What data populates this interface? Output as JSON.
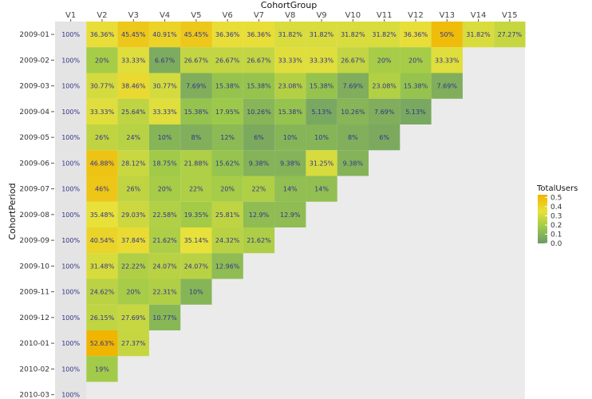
{
  "chart_data": {
    "type": "heatmap",
    "xlabel": "CohortGroup",
    "ylabel": "CohortPeriod",
    "x_categories": [
      "V1",
      "V2",
      "V3",
      "V4",
      "V5",
      "V6",
      "V7",
      "V8",
      "V9",
      "V10",
      "V11",
      "V12",
      "V13",
      "V14",
      "V15"
    ],
    "y_categories": [
      "2009-01",
      "2009-02",
      "2009-03",
      "2009-04",
      "2009-05",
      "2009-06",
      "2009-07",
      "2009-08",
      "2009-09",
      "2009-10",
      "2009-11",
      "2009-12",
      "2010-01",
      "2010-02",
      "2010-03"
    ],
    "values": [
      [
        1,
        0.3636,
        0.4545,
        0.4091,
        0.4545,
        0.3636,
        0.3636,
        0.3182,
        0.3182,
        0.3182,
        0.3182,
        0.3636,
        0.5,
        0.3182,
        0.2727
      ],
      [
        1,
        0.2,
        0.3333,
        0.0667,
        0.2667,
        0.2667,
        0.2667,
        0.3333,
        0.3333,
        0.2667,
        0.2,
        0.2,
        0.3333
      ],
      [
        1,
        0.3077,
        0.3846,
        0.3077,
        0.0769,
        0.1538,
        0.1538,
        0.2308,
        0.1538,
        0.0769,
        0.2308,
        0.1538,
        0.0769
      ],
      [
        1,
        0.3333,
        0.2564,
        0.3333,
        0.1538,
        0.1795,
        0.1026,
        0.1538,
        0.0513,
        0.1026,
        0.0769,
        0.0513
      ],
      [
        1,
        0.26,
        0.24,
        0.1,
        0.08,
        0.12,
        0.06,
        0.1,
        0.1,
        0.08,
        0.06
      ],
      [
        1,
        0.4688,
        0.2812,
        0.1875,
        0.2188,
        0.1562,
        0.0938,
        0.0938,
        0.3125,
        0.0938
      ],
      [
        1,
        0.46,
        0.26,
        0.2,
        0.22,
        0.2,
        0.22,
        0.14,
        0.14
      ],
      [
        1,
        0.3548,
        0.2903,
        0.2258,
        0.1935,
        0.2581,
        0.129,
        0.129
      ],
      [
        1,
        0.4054,
        0.3784,
        0.2162,
        0.3514,
        0.2432,
        0.2162
      ],
      [
        1,
        0.3148,
        0.2222,
        0.2407,
        0.2407,
        0.1296
      ],
      [
        1,
        0.2462,
        0.2,
        0.2231,
        0.1
      ],
      [
        1,
        0.2615,
        0.2769,
        0.1077
      ],
      [
        1,
        0.5263,
        0.2737
      ],
      [
        1,
        0.19
      ],
      [
        1
      ]
    ],
    "cell_labels": [
      [
        "100%",
        "36.36%",
        "45.45%",
        "40.91%",
        "45.45%",
        "36.36%",
        "36.36%",
        "31.82%",
        "31.82%",
        "31.82%",
        "31.82%",
        "36.36%",
        "50%",
        "31.82%",
        "27.27%"
      ],
      [
        "100%",
        "20%",
        "33.33%",
        "6.67%",
        "26.67%",
        "26.67%",
        "26.67%",
        "33.33%",
        "33.33%",
        "26.67%",
        "20%",
        "20%",
        "33.33%"
      ],
      [
        "100%",
        "30.77%",
        "38.46%",
        "30.77%",
        "7.69%",
        "15.38%",
        "15.38%",
        "23.08%",
        "15.38%",
        "7.69%",
        "23.08%",
        "15.38%",
        "7.69%"
      ],
      [
        "100%",
        "33.33%",
        "25.64%",
        "33.33%",
        "15.38%",
        "17.95%",
        "10.26%",
        "15.38%",
        "5.13%",
        "10.26%",
        "7.69%",
        "5.13%"
      ],
      [
        "100%",
        "26%",
        "24%",
        "10%",
        "8%",
        "12%",
        "6%",
        "10%",
        "10%",
        "8%",
        "6%"
      ],
      [
        "100%",
        "46.88%",
        "28.12%",
        "18.75%",
        "21.88%",
        "15.62%",
        "9.38%",
        "9.38%",
        "31.25%",
        "9.38%"
      ],
      [
        "100%",
        "46%",
        "26%",
        "20%",
        "22%",
        "20%",
        "22%",
        "14%",
        "14%"
      ],
      [
        "100%",
        "35.48%",
        "29.03%",
        "22.58%",
        "19.35%",
        "25.81%",
        "12.9%",
        "12.9%"
      ],
      [
        "100%",
        "40.54%",
        "37.84%",
        "21.62%",
        "35.14%",
        "24.32%",
        "21.62%"
      ],
      [
        "100%",
        "31.48%",
        "22.22%",
        "24.07%",
        "24.07%",
        "12.96%"
      ],
      [
        "100%",
        "24.62%",
        "20%",
        "22.31%",
        "10%"
      ],
      [
        "100%",
        "26.15%",
        "27.69%",
        "10.77%"
      ],
      [
        "100%",
        "52.63%",
        "27.37%"
      ],
      [
        "100%",
        "19%"
      ],
      [
        "100%"
      ]
    ],
    "legend": {
      "title": "TotalUsers",
      "ticks": [
        "0.5",
        "0.4",
        "0.3",
        "0.2",
        "0.1",
        "0.0"
      ],
      "tick_values": [
        0.5,
        0.4,
        0.3,
        0.2,
        0.1,
        0.0
      ],
      "range": [
        0,
        0.53
      ],
      "position": "right",
      "colors": [
        "#6a9a6a",
        "#9cc94a",
        "#e8e13a",
        "#f0b400"
      ]
    },
    "first_column_fill": "#e4e4e4",
    "background": "#ebebeb",
    "grid": false
  }
}
